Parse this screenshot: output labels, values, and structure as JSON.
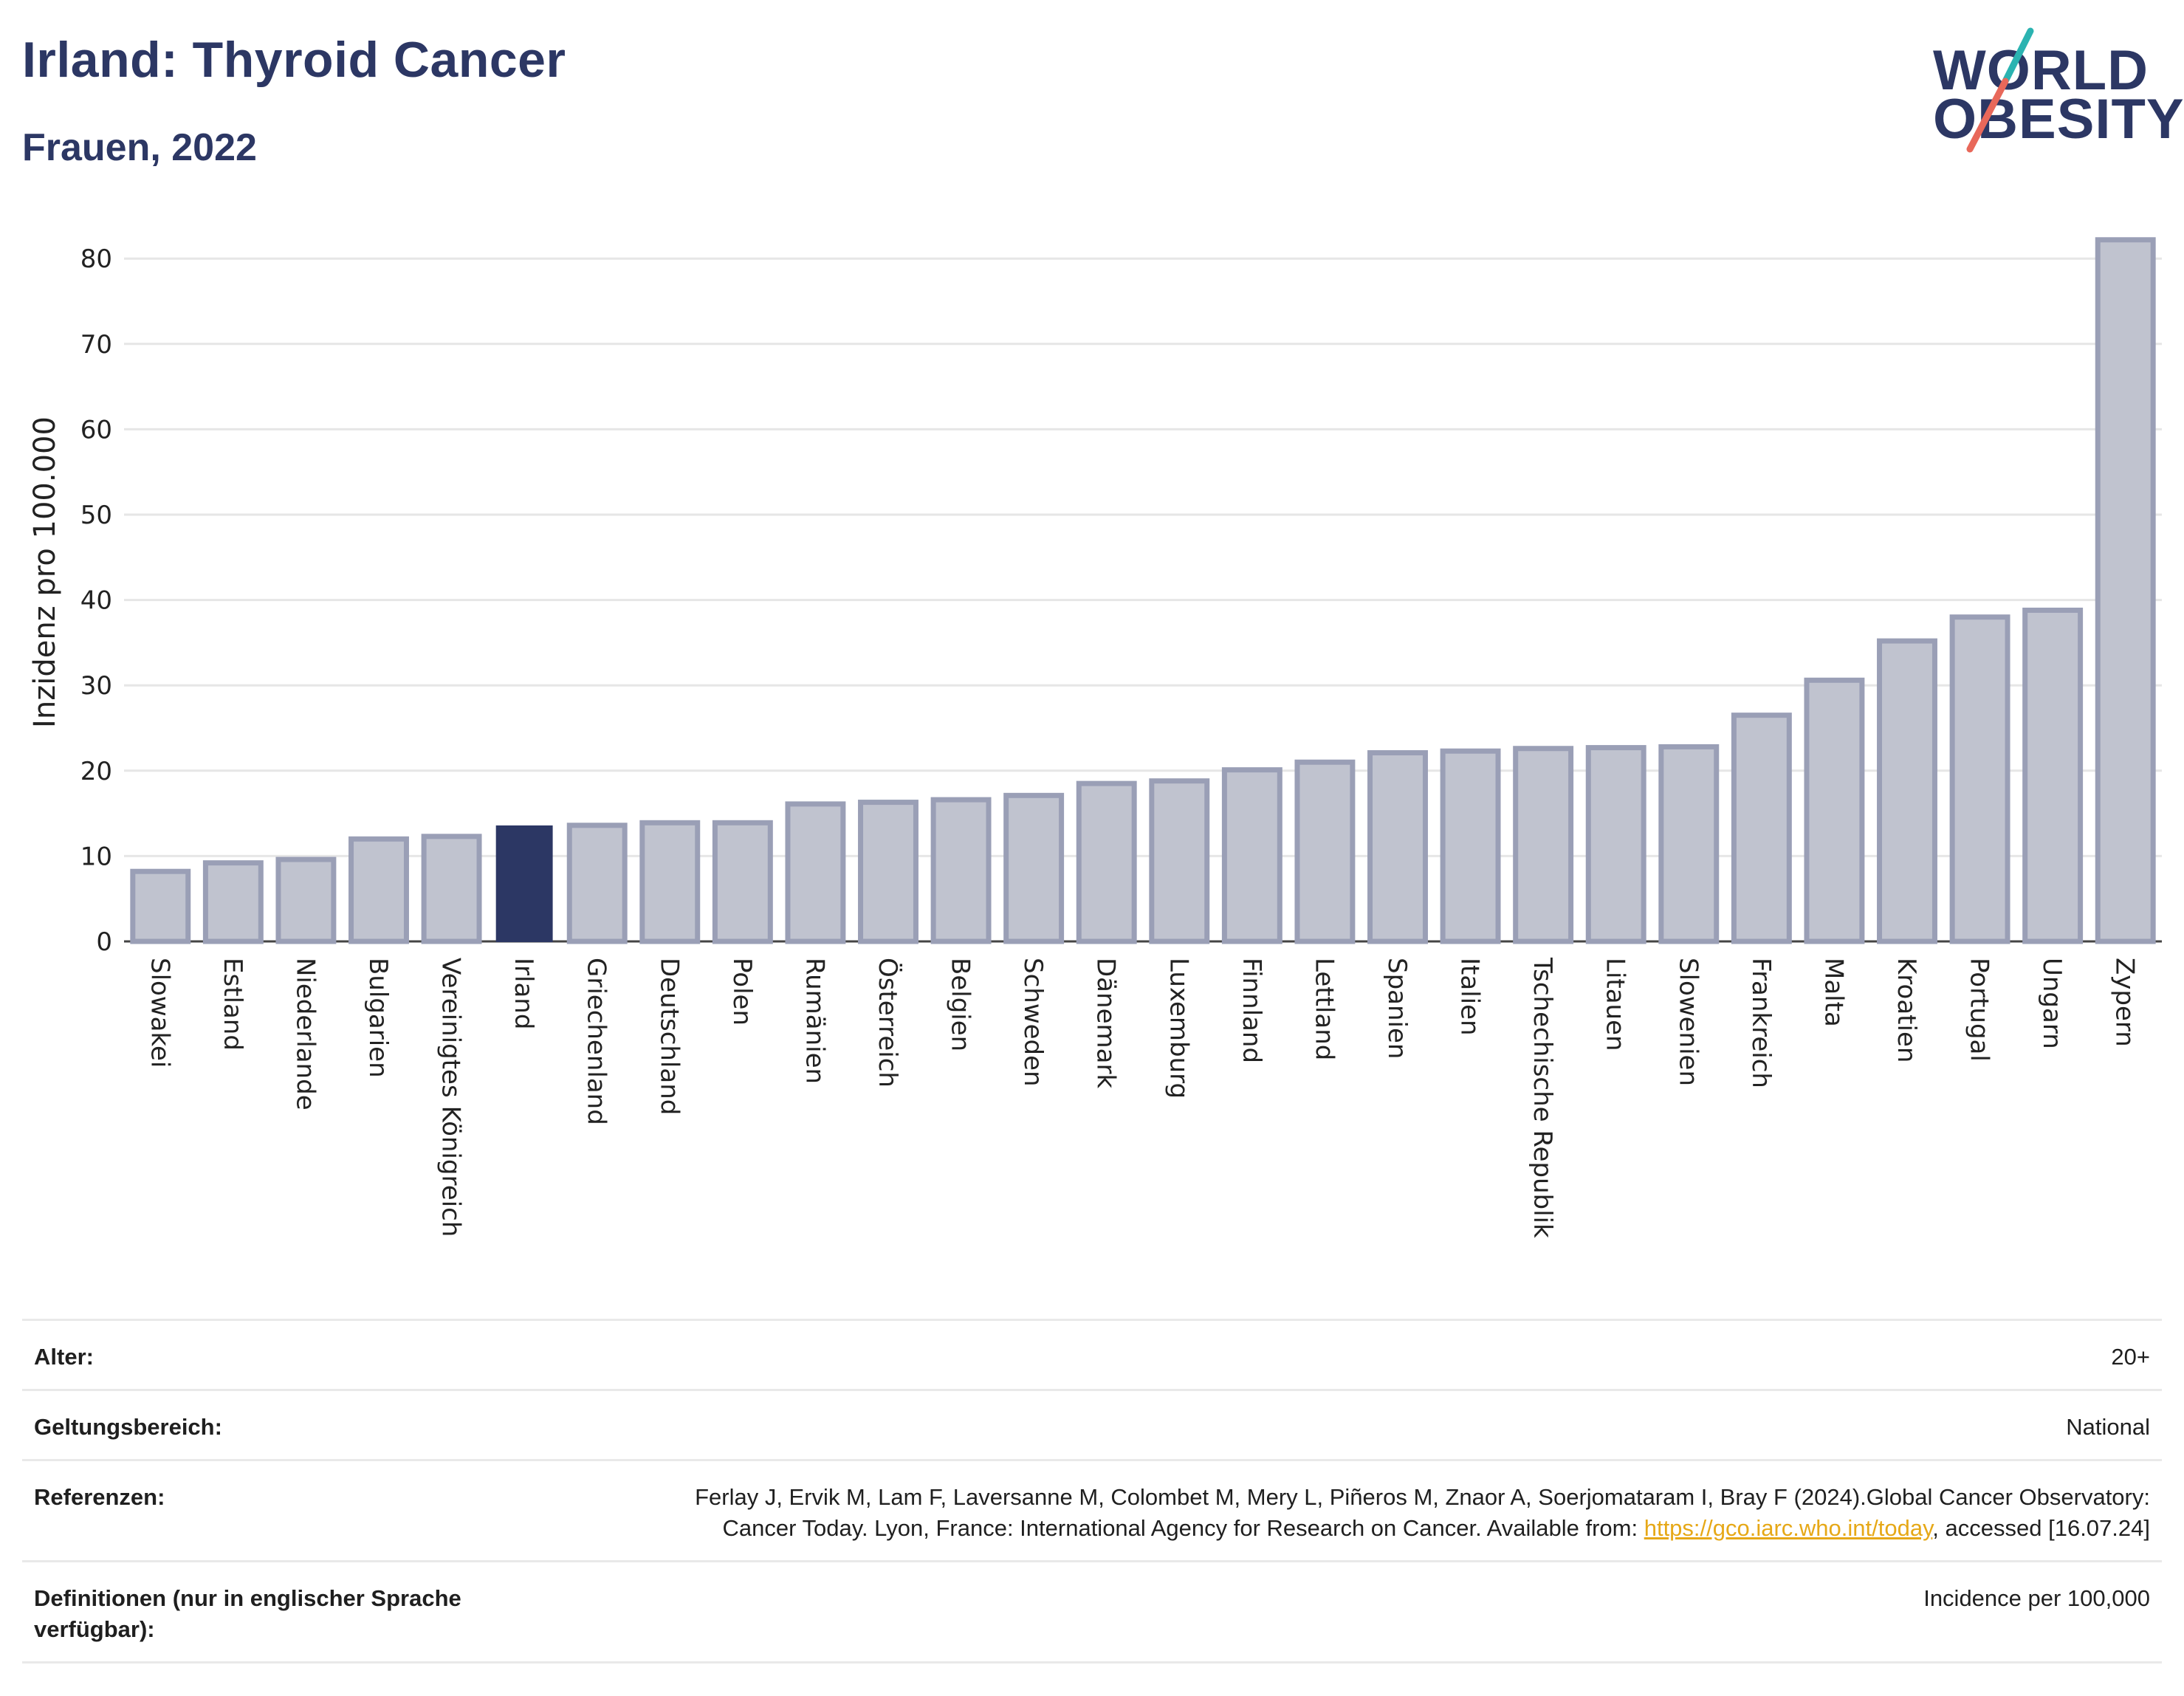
{
  "header": {
    "title": "Irland: Thyroid Cancer",
    "subtitle": "Frauen, 2022"
  },
  "logo": {
    "line1": "WORLD",
    "line2": "OBESITY",
    "colors": {
      "text": "#2c3764",
      "slash_top": "#2bb3b1",
      "slash_bottom": "#e8685a"
    }
  },
  "colors": {
    "bar": "#c0c3cf",
    "bar_border": "#9a9fb6",
    "highlight": "#2c3764",
    "grid": "#e6e6e6"
  },
  "chart_data": {
    "type": "bar",
    "title": "Irland: Thyroid Cancer",
    "subtitle": "Frauen, 2022",
    "xlabel": "",
    "ylabel": "Inzidenz pro 100.000",
    "ylim": [
      0,
      85
    ],
    "yticks": [
      0,
      10,
      20,
      30,
      40,
      50,
      60,
      70,
      80
    ],
    "grid": true,
    "highlight": "Irland",
    "categories": [
      "Slowakei",
      "Estland",
      "Niederlande",
      "Bulgarien",
      "Vereinigtes Königreich",
      "Irland",
      "Griechenland",
      "Deutschland",
      "Polen",
      "Rumänien",
      "Österreich",
      "Belgien",
      "Schweden",
      "Dänemark",
      "Luxemburg",
      "Finnland",
      "Lettland",
      "Spanien",
      "Italien",
      "Tschechische Republik",
      "Litauen",
      "Slowenien",
      "Frankreich",
      "Malta",
      "Kroatien",
      "Portugal",
      "Ungarn",
      "Zypern"
    ],
    "values": [
      8.2,
      9.2,
      9.6,
      12.0,
      12.3,
      13.5,
      13.6,
      13.9,
      13.9,
      16.1,
      16.3,
      16.6,
      17.1,
      18.5,
      18.8,
      20.1,
      21.0,
      22.1,
      22.3,
      22.6,
      22.7,
      22.8,
      26.5,
      30.6,
      35.2,
      38.0,
      38.8,
      82.2
    ]
  },
  "meta": {
    "age_label": "Alter:",
    "age_value": "20+",
    "scope_label": "Geltungsbereich:",
    "scope_value": "National",
    "refs_label": "Referenzen:",
    "refs_text_1": "Ferlay J, Ervik M, Lam F, Laversanne M, Colombet M, Mery L, Piñeros M, Znaor A, Soerjomataram I, Bray F (2024).Global Cancer Observatory: Cancer Today. Lyon, France: International Agency for Research on Cancer. Available from: ",
    "refs_link": "https://gco.iarc.who.int/today",
    "refs_text_2": ", accessed [16.07.24]",
    "defs_label": "Definitionen (nur in englischer Sprache verfügbar):",
    "defs_value": "Incidence per 100,000"
  }
}
